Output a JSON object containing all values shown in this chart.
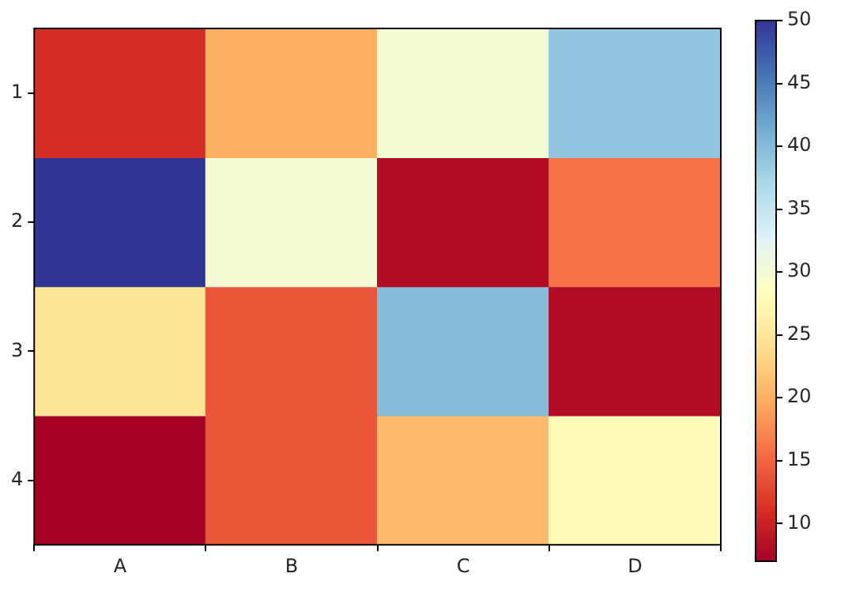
{
  "chart_data": {
    "type": "heatmap",
    "categories": [
      "A",
      "B",
      "C",
      "D"
    ],
    "y_categories": [
      "1",
      "2",
      "3",
      "4"
    ],
    "cells": [
      [
        11,
        20,
        30,
        39
      ],
      [
        50,
        30,
        8,
        16
      ],
      [
        25,
        14,
        40,
        8
      ],
      [
        7,
        14,
        21,
        28
      ]
    ],
    "clim": [
      7,
      50
    ],
    "cticks": [
      10,
      15,
      20,
      25,
      30,
      35,
      40,
      45,
      50
    ]
  }
}
